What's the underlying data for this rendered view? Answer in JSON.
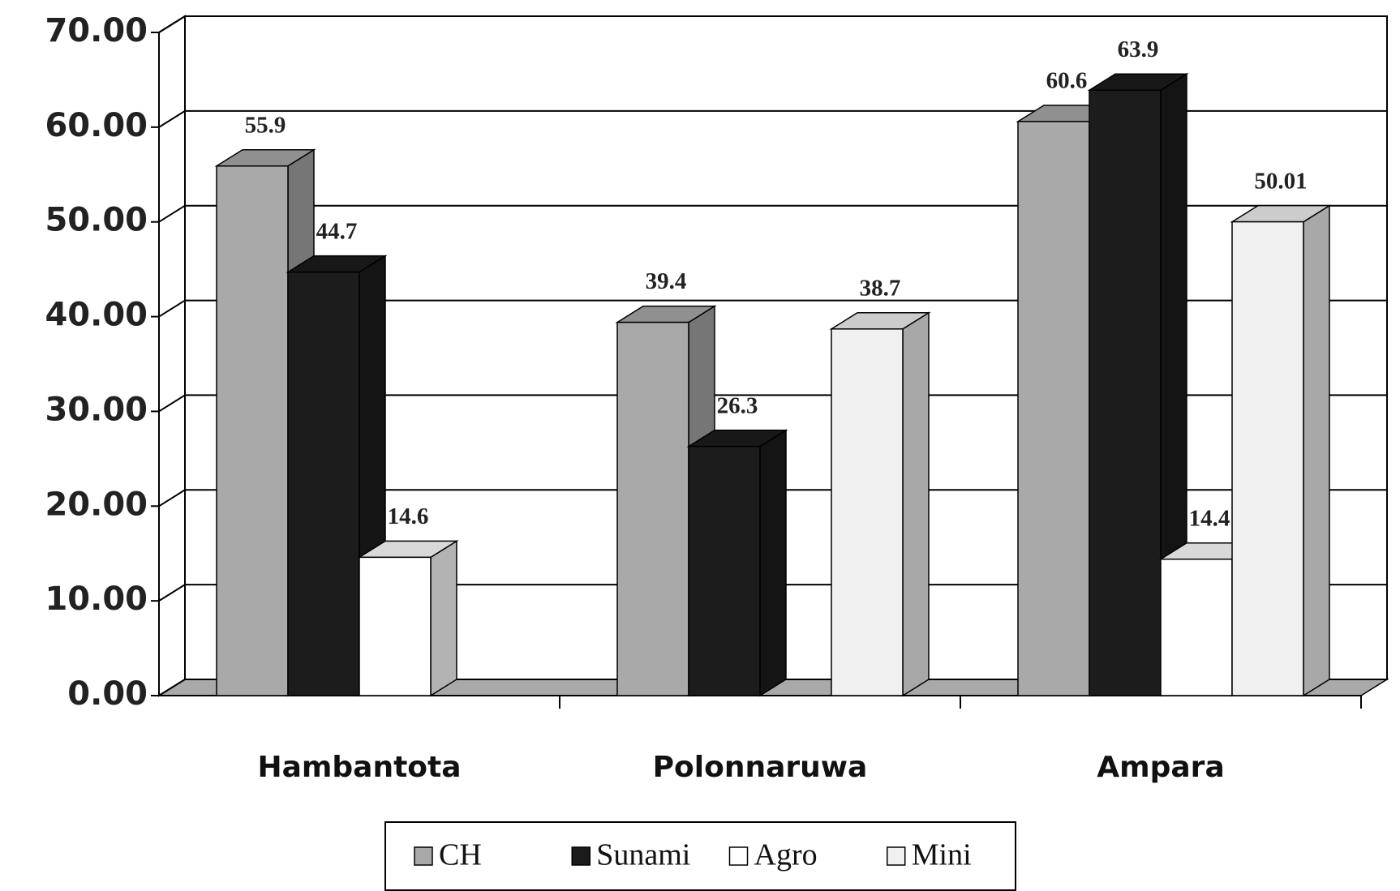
{
  "chart_data": {
    "type": "bar3d",
    "categories": [
      "Hambantota",
      "Polonnaruwa",
      "Ampara"
    ],
    "series": [
      {
        "name": "CH",
        "color": "#a9a9a9",
        "values": [
          55.9,
          39.4,
          60.6
        ]
      },
      {
        "name": "Sunami",
        "color": "#1c1c1c",
        "values": [
          44.7,
          26.3,
          63.9
        ]
      },
      {
        "name": "Agro",
        "color": "#ffffff",
        "values": [
          14.6,
          null,
          14.4
        ]
      },
      {
        "name": "Mini",
        "color": "#f0f0f0",
        "values": [
          null,
          38.7,
          50.01
        ]
      }
    ],
    "ylim": [
      0,
      70
    ],
    "yticks": [
      {
        "value": 0,
        "label": "0.00"
      },
      {
        "value": 10,
        "label": "10.00"
      },
      {
        "value": 20,
        "label": "20.00"
      },
      {
        "value": 30,
        "label": "30.00"
      },
      {
        "value": 40,
        "label": "40.00"
      },
      {
        "value": 50,
        "label": "50.00"
      },
      {
        "value": 60,
        "label": "60.00"
      },
      {
        "value": 70,
        "label": "70.00"
      }
    ],
    "grid": true
  }
}
